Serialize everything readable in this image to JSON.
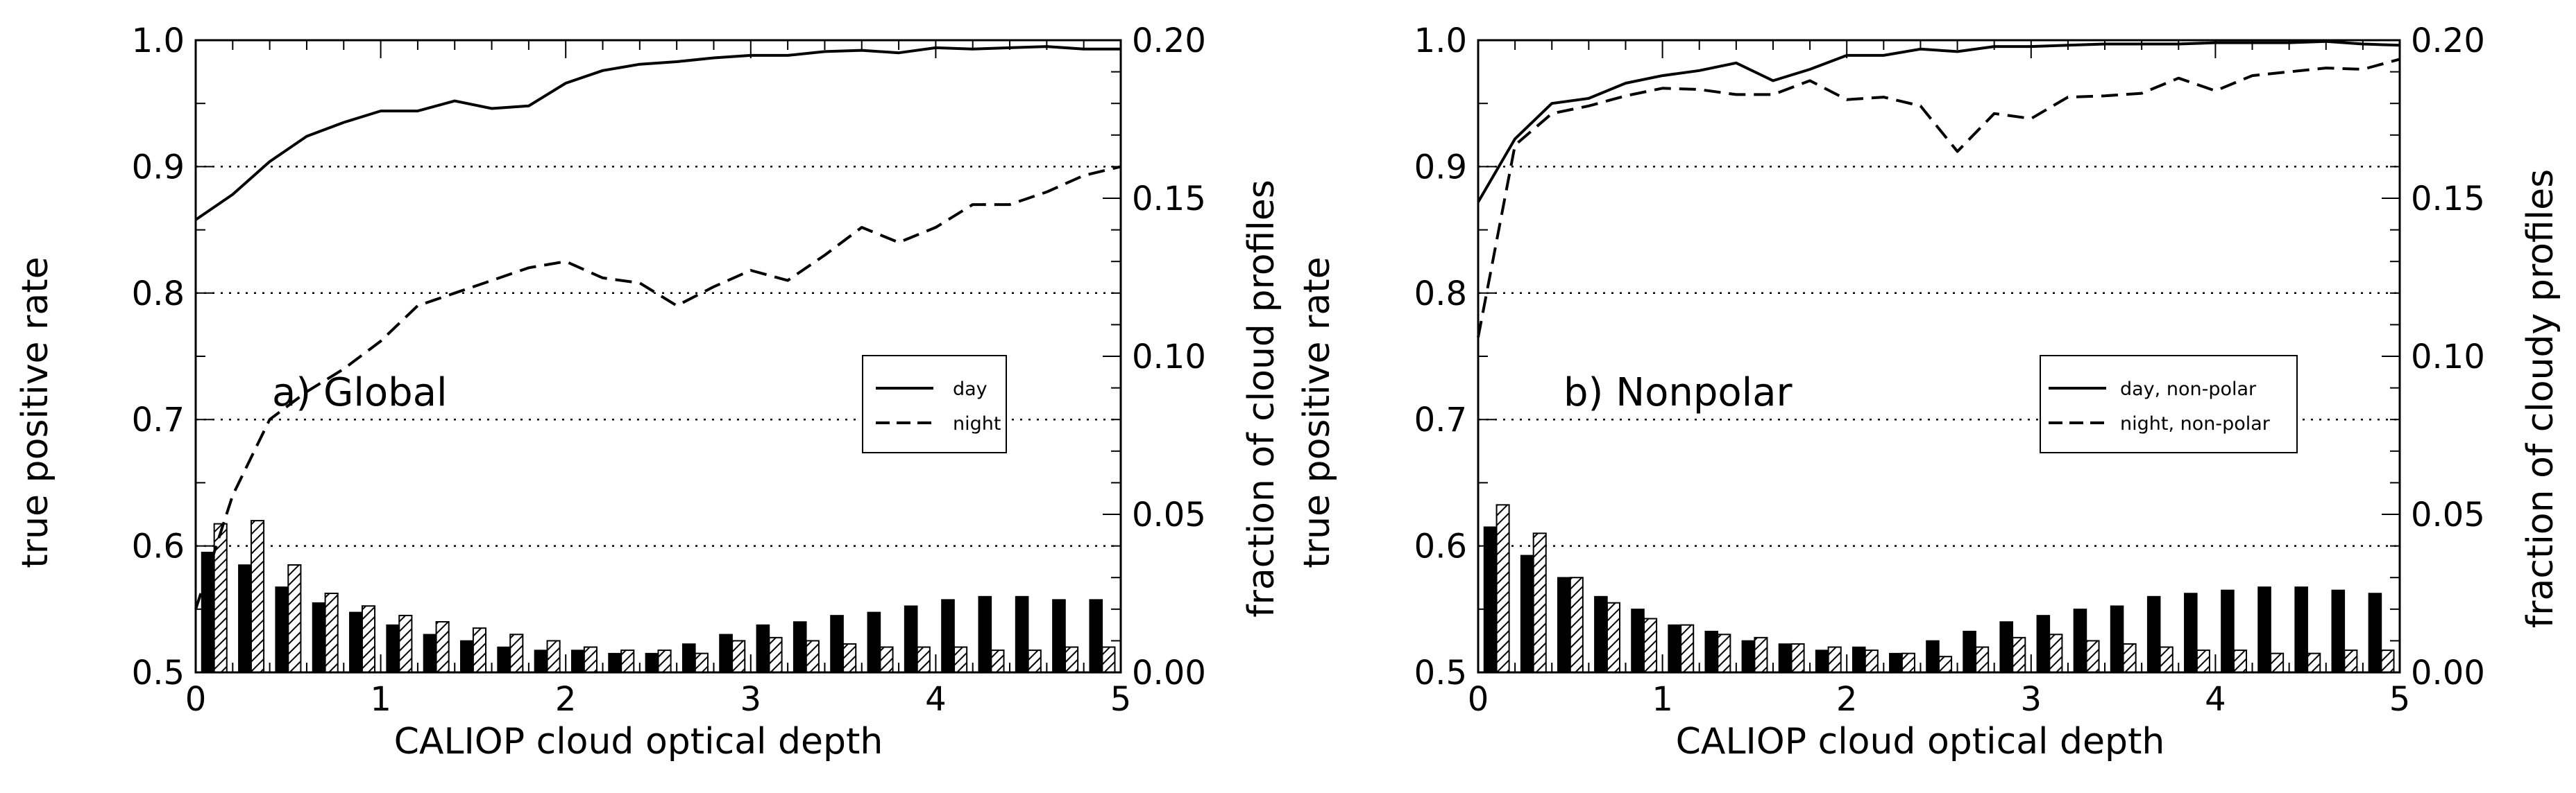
{
  "chart_data": [
    {
      "type": "line+bar",
      "panel_label": "a) Global",
      "xlabel": "CALIOP cloud optical depth",
      "ylabel_left": "true positive rate",
      "ylabel_right": "fraction of cloud profiles",
      "xlim": [
        0,
        5
      ],
      "ylim_left": [
        0.5,
        1.0
      ],
      "ylim_right": [
        0.0,
        0.2
      ],
      "xticks": [
        "0",
        "1",
        "2",
        "3",
        "4",
        "5"
      ],
      "yticks_left": [
        "0.5",
        "0.6",
        "0.7",
        "0.8",
        "0.9",
        "1.0"
      ],
      "yticks_right": [
        "0.00",
        "0.05",
        "0.10",
        "0.15",
        "0.20"
      ],
      "grid": "horizontal dotted",
      "legend_position": "right",
      "x": [
        0.0,
        0.2,
        0.4,
        0.6,
        0.8,
        1.0,
        1.2,
        1.4,
        1.6,
        1.8,
        2.0,
        2.2,
        2.4,
        2.6,
        2.8,
        3.0,
        3.2,
        3.4,
        3.6,
        3.8,
        4.0,
        4.2,
        4.4,
        4.6,
        4.8,
        5.0
      ],
      "series": [
        {
          "name": "day",
          "style": "solid",
          "values": [
            0.858,
            0.878,
            0.904,
            0.924,
            0.935,
            0.944,
            0.944,
            0.952,
            0.946,
            0.948,
            0.966,
            0.976,
            0.981,
            0.983,
            0.986,
            0.988,
            0.988,
            0.991,
            0.992,
            0.99,
            0.994,
            0.993,
            0.994,
            0.995,
            0.993,
            0.993
          ]
        },
        {
          "name": "night",
          "style": "dashed",
          "values": [
            0.55,
            0.64,
            0.7,
            0.722,
            0.74,
            0.762,
            0.79,
            0.8,
            0.81,
            0.82,
            0.825,
            0.812,
            0.808,
            0.79,
            0.805,
            0.818,
            0.81,
            0.83,
            0.852,
            0.84,
            0.852,
            0.87,
            0.87,
            0.88,
            0.893,
            0.9
          ]
        }
      ],
      "bars": {
        "bin_centers": [
          0.1,
          0.3,
          0.5,
          0.7,
          0.9,
          1.1,
          1.3,
          1.5,
          1.7,
          1.9,
          2.1,
          2.3,
          2.5,
          2.7,
          2.9,
          3.1,
          3.3,
          3.5,
          3.7,
          3.9,
          4.1,
          4.3,
          4.5,
          4.7,
          4.9
        ],
        "series": [
          {
            "name": "day",
            "fill": "solid",
            "values": [
              0.038,
              0.034,
              0.027,
              0.022,
              0.019,
              0.015,
              0.012,
              0.01,
              0.008,
              0.007,
              0.007,
              0.006,
              0.006,
              0.009,
              0.012,
              0.015,
              0.016,
              0.018,
              0.019,
              0.021,
              0.023,
              0.024,
              0.024,
              0.023,
              0.023
            ]
          },
          {
            "name": "night",
            "fill": "hatched",
            "values": [
              0.047,
              0.048,
              0.034,
              0.025,
              0.021,
              0.018,
              0.016,
              0.014,
              0.012,
              0.01,
              0.008,
              0.007,
              0.007,
              0.006,
              0.01,
              0.011,
              0.01,
              0.009,
              0.008,
              0.008,
              0.008,
              0.007,
              0.007,
              0.008,
              0.008
            ]
          }
        ]
      }
    },
    {
      "type": "line+bar",
      "panel_label": "b) Nonpolar",
      "xlabel": "CALIOP cloud optical depth",
      "ylabel_left": "true positive rate",
      "ylabel_right": "fraction of cloudy profiles",
      "xlim": [
        0,
        5
      ],
      "ylim_left": [
        0.5,
        1.0
      ],
      "ylim_right": [
        0.0,
        0.2
      ],
      "xticks": [
        "0",
        "1",
        "2",
        "3",
        "4",
        "5"
      ],
      "yticks_left": [
        "0.5",
        "0.6",
        "0.7",
        "0.8",
        "0.9",
        "1.0"
      ],
      "yticks_right": [
        "0.00",
        "0.05",
        "0.10",
        "0.15",
        "0.20"
      ],
      "grid": "horizontal dotted",
      "legend_position": "right",
      "x": [
        0.0,
        0.2,
        0.4,
        0.6,
        0.8,
        1.0,
        1.2,
        1.4,
        1.6,
        1.8,
        2.0,
        2.2,
        2.4,
        2.6,
        2.8,
        3.0,
        3.2,
        3.4,
        3.6,
        3.8,
        4.0,
        4.2,
        4.4,
        4.6,
        4.8,
        5.0
      ],
      "series": [
        {
          "name": "day, non-polar",
          "style": "solid",
          "values": [
            0.872,
            0.922,
            0.95,
            0.954,
            0.966,
            0.972,
            0.976,
            0.982,
            0.968,
            0.977,
            0.988,
            0.988,
            0.993,
            0.991,
            0.995,
            0.995,
            0.996,
            0.997,
            0.997,
            0.997,
            0.998,
            0.998,
            0.998,
            0.999,
            0.997,
            0.996
          ]
        },
        {
          "name": "night, non-polar",
          "style": "dashed",
          "values": [
            0.765,
            0.917,
            0.942,
            0.948,
            0.956,
            0.962,
            0.961,
            0.957,
            0.957,
            0.968,
            0.953,
            0.955,
            0.948,
            0.912,
            0.942,
            0.938,
            0.955,
            0.956,
            0.958,
            0.97,
            0.96,
            0.972,
            0.975,
            0.978,
            0.977,
            0.985
          ]
        }
      ],
      "bars": {
        "bin_centers": [
          0.1,
          0.3,
          0.5,
          0.7,
          0.9,
          1.1,
          1.3,
          1.5,
          1.7,
          1.9,
          2.1,
          2.3,
          2.5,
          2.7,
          2.9,
          3.1,
          3.3,
          3.5,
          3.7,
          3.9,
          4.1,
          4.3,
          4.5,
          4.7,
          4.9
        ],
        "series": [
          {
            "name": "day, non-polar",
            "fill": "solid",
            "values": [
              0.046,
              0.037,
              0.03,
              0.024,
              0.02,
              0.015,
              0.013,
              0.01,
              0.009,
              0.007,
              0.008,
              0.006,
              0.01,
              0.013,
              0.016,
              0.018,
              0.02,
              0.021,
              0.024,
              0.025,
              0.026,
              0.027,
              0.027,
              0.026,
              0.025
            ]
          },
          {
            "name": "night, non-polar",
            "fill": "hatched",
            "values": [
              0.053,
              0.044,
              0.03,
              0.022,
              0.017,
              0.015,
              0.012,
              0.011,
              0.009,
              0.008,
              0.007,
              0.006,
              0.005,
              0.008,
              0.011,
              0.012,
              0.01,
              0.009,
              0.008,
              0.007,
              0.007,
              0.006,
              0.006,
              0.007,
              0.007
            ]
          }
        ]
      }
    }
  ]
}
